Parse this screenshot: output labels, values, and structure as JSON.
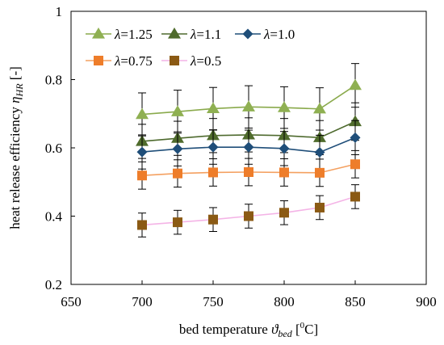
{
  "chart_data": {
    "type": "line",
    "title": "",
    "xlabel": {
      "prefix": "bed temperature ",
      "symbol": "ϑ",
      "sub": "bed",
      "unit_open": " [",
      "unit_sup": "0",
      "unit_close": "C]"
    },
    "ylabel": {
      "prefix": "heat release efficiency ",
      "symbol": "η",
      "sub": "HR",
      "unit": " [-]"
    },
    "xlim": [
      650,
      900
    ],
    "ylim": [
      0.2,
      1.0
    ],
    "xticks": [
      "650",
      "700",
      "750",
      "800",
      "850",
      "900"
    ],
    "yticks": [
      "0.2",
      "0.4",
      "0.6",
      "0.8",
      "1"
    ],
    "grid": false,
    "legend_position": "top-left",
    "x": [
      700,
      725,
      750,
      775,
      800,
      825,
      850
    ],
    "series": [
      {
        "name": "λ=1.25",
        "marker": "triangle",
        "color": "#8aaa4c",
        "marker_color": "#8fb052",
        "values": [
          0.698,
          0.706,
          0.715,
          0.72,
          0.718,
          0.714,
          0.783
        ],
        "error": [
          0.063,
          0.063,
          0.062,
          0.062,
          0.061,
          0.062,
          0.064
        ]
      },
      {
        "name": "λ=1.1",
        "marker": "triangle",
        "color": "#4e6a2e",
        "marker_color": "#4f6b2c",
        "values": [
          0.619,
          0.628,
          0.636,
          0.638,
          0.636,
          0.63,
          0.677
        ],
        "error": [
          0.05,
          0.05,
          0.05,
          0.05,
          0.05,
          0.05,
          0.055
        ]
      },
      {
        "name": "λ=1.0",
        "marker": "diamond",
        "color": "#1f4e79",
        "marker_color": "#1f4e79",
        "values": [
          0.588,
          0.597,
          0.602,
          0.602,
          0.598,
          0.587,
          0.63
        ],
        "error": [
          0.05,
          0.05,
          0.05,
          0.05,
          0.05,
          0.05,
          0.05
        ]
      },
      {
        "name": "λ=0.75",
        "marker": "square",
        "color": "#f4a060",
        "marker_color": "#ee7d2a",
        "values": [
          0.519,
          0.525,
          0.528,
          0.529,
          0.528,
          0.527,
          0.552
        ],
        "error": [
          0.04,
          0.04,
          0.04,
          0.04,
          0.04,
          0.04,
          0.04
        ]
      },
      {
        "name": "λ=0.5",
        "marker": "square",
        "color": "#f4b4e6",
        "marker_color": "#8b5a14",
        "values": [
          0.374,
          0.382,
          0.39,
          0.4,
          0.41,
          0.425,
          0.457
        ],
        "error": [
          0.035,
          0.035,
          0.035,
          0.035,
          0.035,
          0.035,
          0.035
        ]
      }
    ]
  }
}
